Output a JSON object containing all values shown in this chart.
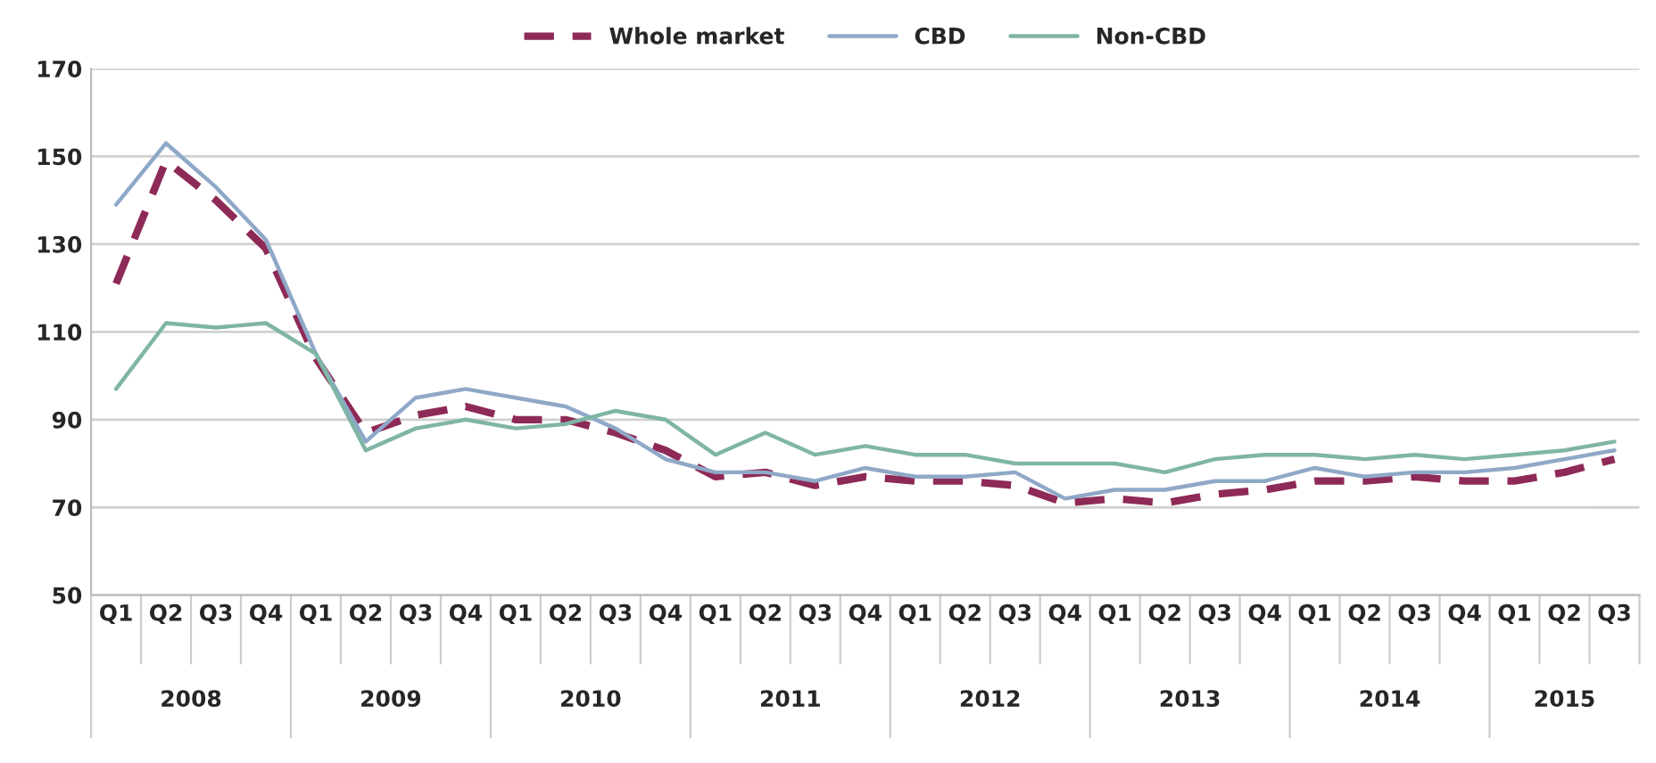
{
  "chart_data": {
    "type": "line",
    "categories": [
      "Q1",
      "Q2",
      "Q3",
      "Q4",
      "Q1",
      "Q2",
      "Q3",
      "Q4",
      "Q1",
      "Q2",
      "Q3",
      "Q4",
      "Q1",
      "Q2",
      "Q3",
      "Q4",
      "Q1",
      "Q2",
      "Q3",
      "Q4",
      "Q1",
      "Q2",
      "Q3",
      "Q4",
      "Q1",
      "Q2",
      "Q3",
      "Q4",
      "Q1",
      "Q2",
      "Q3"
    ],
    "annotations": [
      "2008",
      "2009",
      "2010",
      "2011",
      "2012",
      "2013",
      "2014",
      "2015"
    ],
    "series": [
      {
        "name": "Whole market",
        "color": "#8e2a57",
        "line_style": "dashed",
        "values": [
          121,
          149,
          140,
          129,
          104,
          87,
          91,
          93,
          90,
          90,
          87,
          83,
          77,
          78,
          75,
          77,
          76,
          76,
          75,
          71,
          72,
          71,
          73,
          74,
          76,
          76,
          77,
          76,
          76,
          78,
          81
        ]
      },
      {
        "name": "CBD",
        "color": "#8fa8c8",
        "line_style": "solid",
        "values": [
          139,
          153,
          143,
          131,
          105,
          85,
          95,
          97,
          95,
          93,
          88,
          81,
          78,
          78,
          76,
          79,
          77,
          77,
          78,
          72,
          74,
          74,
          76,
          76,
          79,
          77,
          78,
          78,
          79,
          81,
          83
        ]
      },
      {
        "name": "Non-CBD",
        "color": "#7fb5a5",
        "line_style": "solid",
        "values": [
          97,
          112,
          111,
          112,
          105,
          83,
          88,
          90,
          88,
          89,
          92,
          90,
          82,
          87,
          82,
          84,
          82,
          82,
          80,
          80,
          80,
          78,
          81,
          82,
          82,
          81,
          82,
          81,
          82,
          83,
          85
        ]
      }
    ],
    "ylim": [
      50,
      170
    ],
    "yticks": [
      50,
      70,
      90,
      110,
      130,
      150,
      170
    ],
    "grid": "y",
    "legend": "top",
    "marker": "none"
  }
}
